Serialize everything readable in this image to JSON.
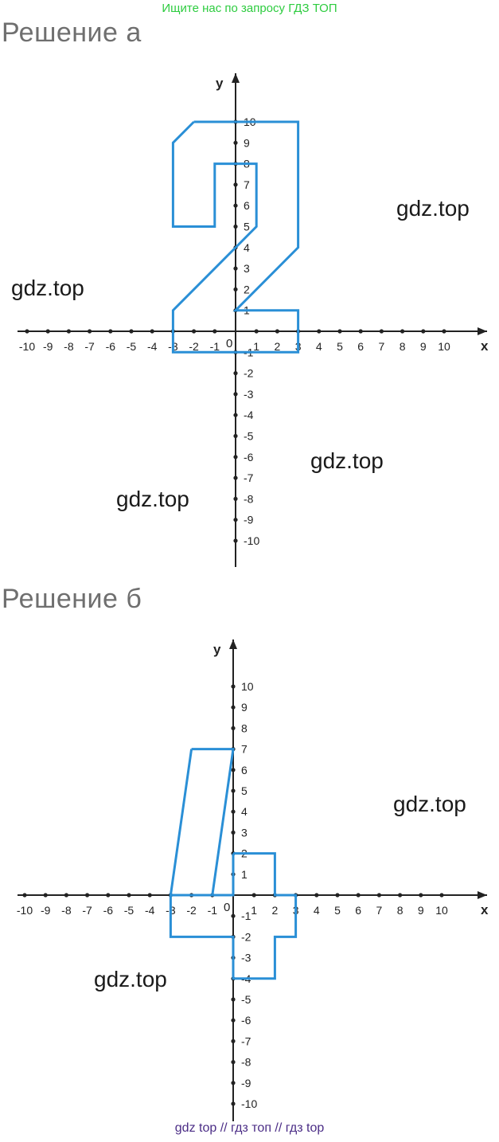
{
  "banner": "Ищите нас по запросу ГДЗ ТОП",
  "headings": {
    "a": "Решение а",
    "b": "Решение б"
  },
  "watermark": "gdz.top",
  "footer": "gdz top  //  гдз топ  //  гдз top",
  "colors": {
    "axis": "#222222",
    "shape": "#2a8fd6",
    "banner": "#2ecc40",
    "footer": "#4b2d86"
  },
  "chart_data": [
    {
      "type": "line",
      "title": "Решение а",
      "xlabel": "x",
      "ylabel": "y",
      "xlim": [
        -10,
        10
      ],
      "ylim": [
        -10,
        10
      ],
      "x_ticks": [
        -10,
        -9,
        -8,
        -7,
        -6,
        -5,
        -4,
        -3,
        -2,
        -1,
        1,
        2,
        3,
        4,
        5,
        6,
        7,
        8,
        9,
        10
      ],
      "y_ticks": [
        -10,
        -9,
        -8,
        -7,
        -6,
        -5,
        -4,
        -3,
        -2,
        -1,
        1,
        2,
        3,
        4,
        5,
        6,
        7,
        8,
        9,
        10
      ],
      "origin_label": "0",
      "shape": [
        [
          -2,
          10
        ],
        [
          3,
          10
        ],
        [
          3,
          4
        ],
        [
          0,
          1
        ],
        [
          3,
          1
        ],
        [
          3,
          -1
        ],
        [
          -3,
          -1
        ],
        [
          -3,
          1
        ],
        [
          1,
          5
        ],
        [
          1,
          8
        ],
        [
          -1,
          8
        ],
        [
          -1,
          5
        ],
        [
          -3,
          5
        ],
        [
          -3,
          9
        ],
        [
          -2,
          10
        ]
      ]
    },
    {
      "type": "line",
      "title": "Решение б",
      "xlabel": "x",
      "ylabel": "y",
      "xlim": [
        -10,
        10
      ],
      "ylim": [
        -10,
        10
      ],
      "x_ticks": [
        -10,
        -9,
        -8,
        -7,
        -6,
        -5,
        -4,
        -3,
        -2,
        -1,
        1,
        2,
        3,
        4,
        5,
        6,
        7,
        8,
        9,
        10
      ],
      "y_ticks": [
        -10,
        -9,
        -8,
        -7,
        -6,
        -5,
        -4,
        -3,
        -2,
        -1,
        1,
        2,
        3,
        4,
        5,
        6,
        7,
        8,
        9,
        10
      ],
      "origin_label": "0",
      "shape": [
        [
          -2,
          7
        ],
        [
          0,
          7
        ],
        [
          -1,
          0
        ],
        [
          -3,
          0
        ],
        [
          -2,
          7
        ]
      ],
      "shape2": [
        [
          0,
          2
        ],
        [
          2,
          2
        ],
        [
          2,
          0
        ],
        [
          3,
          0
        ],
        [
          3,
          -2
        ],
        [
          2,
          -2
        ],
        [
          2,
          -4
        ],
        [
          0,
          -4
        ],
        [
          0,
          -2
        ],
        [
          -3,
          -2
        ],
        [
          -3,
          0
        ],
        [
          0,
          0
        ],
        [
          0,
          2
        ]
      ]
    }
  ]
}
